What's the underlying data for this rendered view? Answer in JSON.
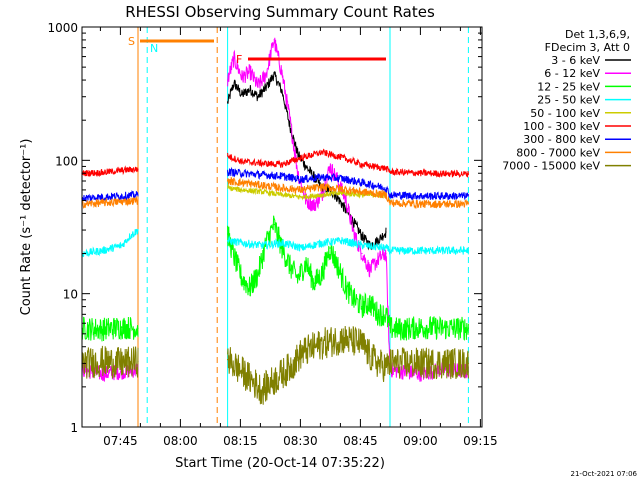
{
  "chart_data": {
    "type": "line",
    "title": "RHESSI Observing Summary Count Rates",
    "xlabel": "Start Time (20-Oct-14 07:35:22)",
    "ylabel": "Count Rate (s⁻¹ detector⁻¹)",
    "footer": "21-Oct-2021 07:06",
    "yscale": "log",
    "ylim": [
      1,
      1000
    ],
    "xlim_minutes_since_start": [
      0,
      100
    ],
    "x_ticks": [
      {
        "label": "07:45",
        "min": 9.6
      },
      {
        "label": "08:00",
        "min": 24.6
      },
      {
        "label": "08:15",
        "min": 39.6
      },
      {
        "label": "08:30",
        "min": 54.6
      },
      {
        "label": "08:45",
        "min": 69.6
      },
      {
        "label": "09:00",
        "min": 84.6
      },
      {
        "label": "09:15",
        "min": 99.6
      }
    ],
    "y_ticks": [
      {
        "label": "1",
        "value": 1
      },
      {
        "label": "10",
        "value": 10
      },
      {
        "label": "100",
        "value": 100
      },
      {
        "label": "1000",
        "value": 1000
      }
    ],
    "legend_header": [
      "Det 1,3,6,9,",
      "FDecim 3, Att 0"
    ],
    "legend_position": "right",
    "flags": [
      {
        "label": "S",
        "color": "#ff8000",
        "start": 14.5,
        "end": 33.0
      },
      {
        "label": "N",
        "color": "#00ffff",
        "start": 15.0,
        "end": 15.0
      },
      {
        "label": "F",
        "color": "#ff0000",
        "start": 41.5,
        "end": 76.0
      }
    ],
    "night_start_lines": [
      {
        "color": "#ff8000",
        "min": 14.0,
        "style": "solid"
      },
      {
        "color": "#ff8000",
        "min": 33.8,
        "style": "dashed"
      },
      {
        "color": "#00ffff",
        "min": 16.3,
        "style": "dashed"
      },
      {
        "color": "#00ffff",
        "min": 36.4,
        "style": "solid"
      },
      {
        "color": "#00ffff",
        "min": 77.0,
        "style": "solid"
      },
      {
        "color": "#00ffff",
        "min": 96.6,
        "style": "dashed"
      }
    ],
    "data_gaps_minutes": [
      [
        14.0,
        36.4
      ],
      [
        77.0,
        77.0
      ]
    ],
    "series": [
      {
        "name": "3 - 6 keV",
        "color": "#000000",
        "x": [
          36.4,
          38,
          40,
          42,
          44,
          46,
          48,
          50,
          52,
          54,
          56,
          58,
          60,
          62,
          64,
          66,
          68,
          70,
          72,
          74,
          76
        ],
        "y": [
          270,
          380,
          310,
          340,
          300,
          350,
          440,
          330,
          180,
          110,
          90,
          75,
          62,
          60,
          52,
          42,
          34,
          27,
          23,
          25,
          29
        ]
      },
      {
        "name": "6 - 12 keV",
        "color": "#ff00ff",
        "x": [
          0,
          5,
          10,
          14,
          36.4,
          38,
          40,
          42,
          44,
          46,
          48,
          50,
          52,
          54,
          56,
          58,
          60,
          62,
          64,
          66,
          68,
          70,
          72,
          74,
          76,
          77,
          80,
          85,
          90,
          96.6
        ],
        "y": [
          2.7,
          2.5,
          2.6,
          2.7,
          400,
          580,
          420,
          460,
          360,
          440,
          800,
          450,
          200,
          80,
          50,
          46,
          55,
          90,
          70,
          50,
          28,
          20,
          15,
          18,
          20,
          2.7,
          2.6,
          2.5,
          2.7,
          2.6
        ]
      },
      {
        "name": "12 - 25 keV",
        "color": "#00ff00",
        "x": [
          0,
          5,
          10,
          14,
          36.4,
          38,
          40,
          42,
          44,
          46,
          48,
          50,
          52,
          54,
          56,
          58,
          60,
          62,
          64,
          66,
          68,
          70,
          72,
          74,
          76,
          77,
          80,
          85,
          90,
          96.6
        ],
        "y": [
          5.5,
          5.4,
          5.6,
          5.5,
          28,
          19,
          13,
          11,
          14,
          24,
          33,
          22,
          16,
          13,
          17,
          12,
          14,
          22,
          16,
          11,
          9,
          8,
          8.5,
          7,
          7,
          5.5,
          5.4,
          5.6,
          5.5,
          5.5
        ]
      },
      {
        "name": "25 - 50 keV",
        "color": "#00ffff",
        "x": [
          0,
          5,
          10,
          12,
          14,
          36.4,
          40,
          45,
          50,
          55,
          60,
          65,
          70,
          76,
          77,
          85,
          96.6
        ],
        "y": [
          20,
          21,
          23,
          27,
          30,
          25,
          24,
          23,
          24,
          22,
          24,
          25,
          23,
          22,
          21,
          21,
          21
        ]
      },
      {
        "name": "50 - 100 keV",
        "color": "#cccc00",
        "x": [
          36.4,
          40,
          45,
          50,
          55,
          60,
          65,
          70,
          76
        ],
        "y": [
          62,
          60,
          58,
          55,
          53,
          55,
          57,
          55,
          55
        ]
      },
      {
        "name": "100 - 300 keV",
        "color": "#ff0000",
        "x": [
          0,
          5,
          10,
          14,
          36.4,
          40,
          45,
          50,
          55,
          60,
          65,
          70,
          76,
          77,
          85,
          96.6
        ],
        "y": [
          80,
          81,
          84,
          86,
          108,
          98,
          95,
          93,
          105,
          115,
          105,
          93,
          87,
          82,
          80,
          79
        ]
      },
      {
        "name": "300 - 800 keV",
        "color": "#0000ff",
        "x": [
          0,
          5,
          10,
          14,
          36.4,
          40,
          45,
          50,
          55,
          60,
          65,
          70,
          76,
          77,
          85,
          96.6
        ],
        "y": [
          52,
          53,
          54,
          55,
          82,
          80,
          78,
          76,
          72,
          75,
          73,
          68,
          62,
          55,
          54,
          54
        ]
      },
      {
        "name": "800 - 7000 keV",
        "color": "#ff8000",
        "x": [
          0,
          5,
          10,
          14,
          36.4,
          40,
          45,
          50,
          55,
          60,
          65,
          70,
          76,
          77,
          85,
          96.6
        ],
        "y": [
          47,
          48,
          49,
          50,
          70,
          68,
          65,
          62,
          60,
          63,
          61,
          58,
          55,
          48,
          47,
          47
        ]
      },
      {
        "name": "7000 - 15000 keV",
        "color": "#808000",
        "x": [
          0,
          5,
          10,
          14,
          36.4,
          40,
          45,
          50,
          52,
          55,
          60,
          65,
          70,
          72,
          74,
          76,
          77,
          85,
          96.6
        ],
        "y": [
          3.0,
          3.1,
          3.0,
          3.1,
          3.2,
          2.6,
          1.9,
          2.5,
          2.8,
          3.6,
          4.2,
          4.6,
          4.2,
          3.4,
          3.0,
          2.8,
          3.0,
          3.0,
          3.0
        ]
      }
    ]
  }
}
